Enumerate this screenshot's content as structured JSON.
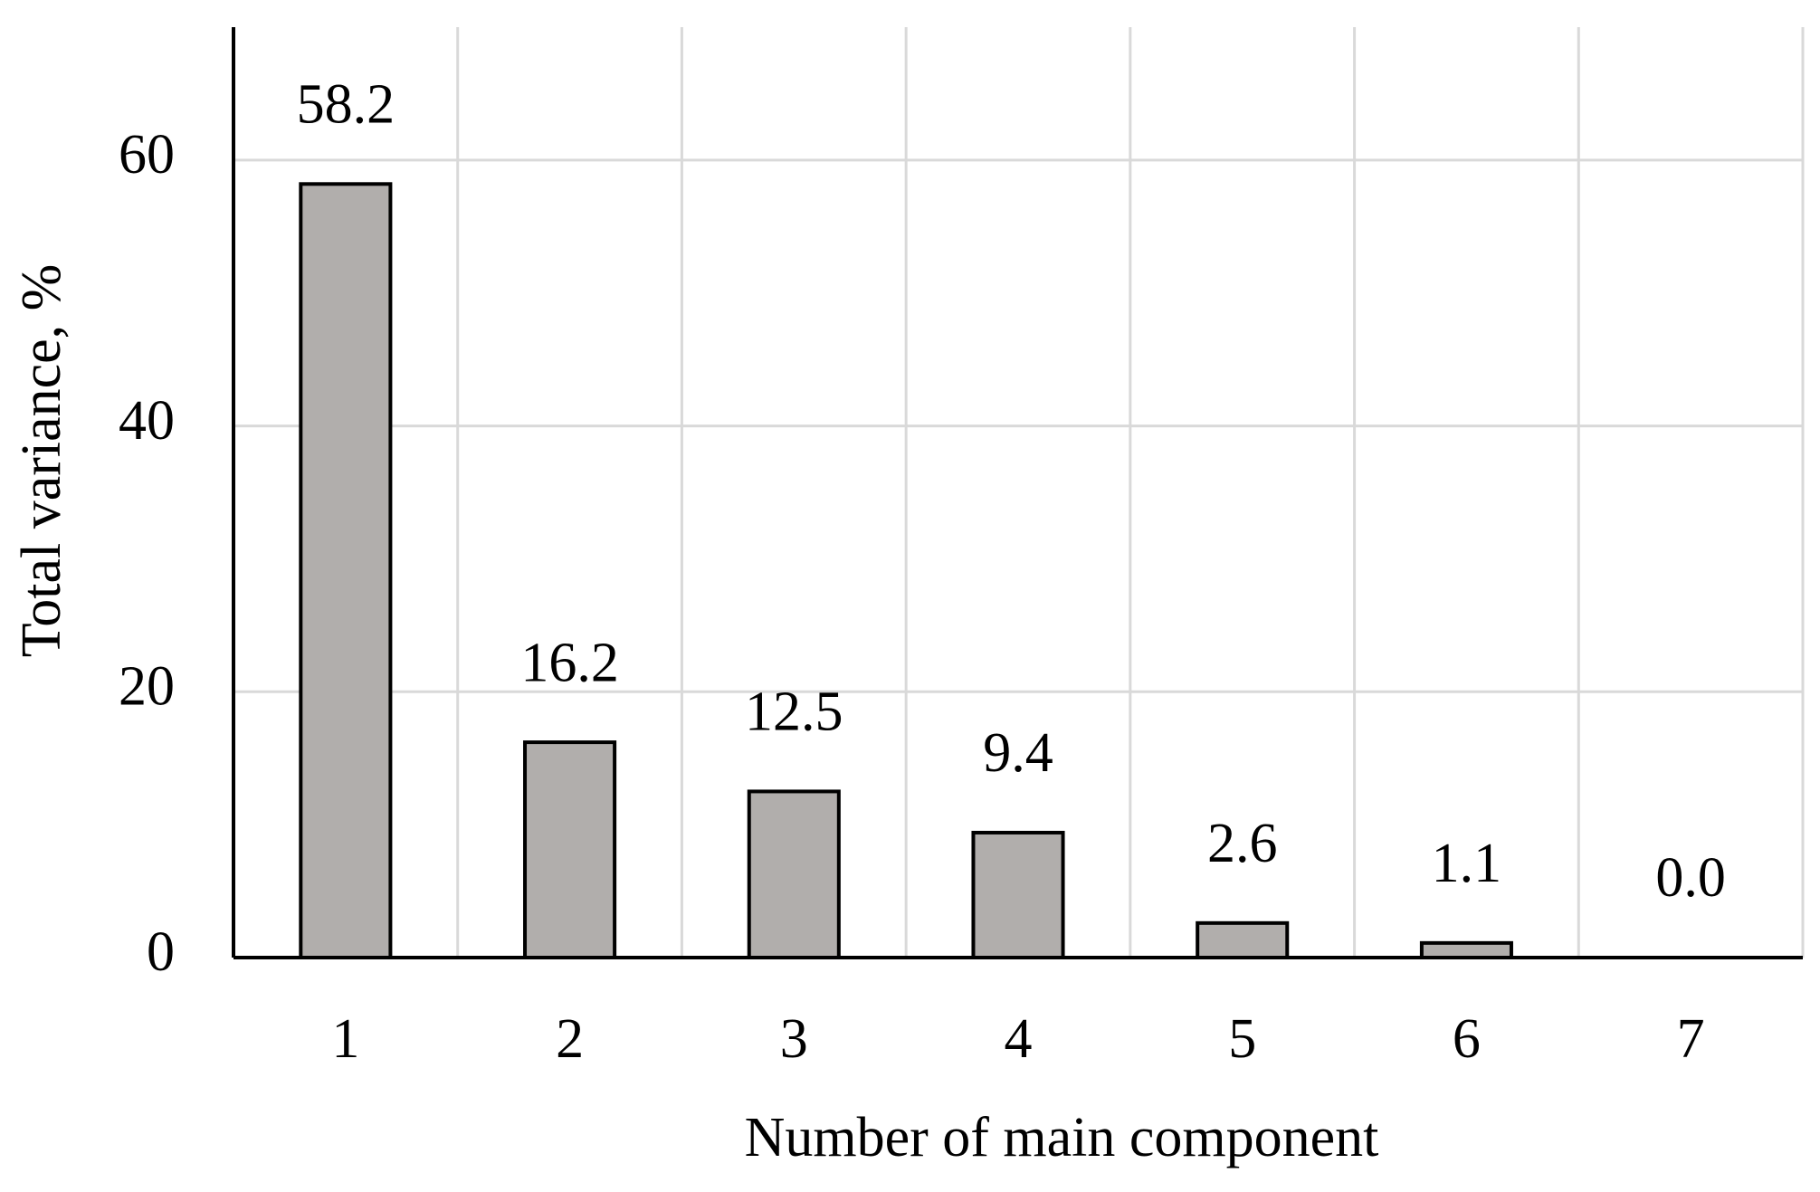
{
  "chart_data": {
    "type": "bar",
    "x_label": "Number of main component",
    "y_label": "Total variance, %",
    "categories": [
      "1",
      "2",
      "3",
      "4",
      "5",
      "6",
      "7"
    ],
    "values": [
      58.2,
      16.2,
      12.5,
      9.4,
      2.6,
      1.1,
      0.0
    ],
    "value_labels": [
      "58.2",
      "16.2",
      "12.5",
      "9.4",
      "2.6",
      "1.1",
      "0.0"
    ],
    "color": "#b1aeac",
    "ylim": [
      0,
      70
    ],
    "yticks": [
      0,
      20,
      40,
      60
    ],
    "grid": true
  }
}
